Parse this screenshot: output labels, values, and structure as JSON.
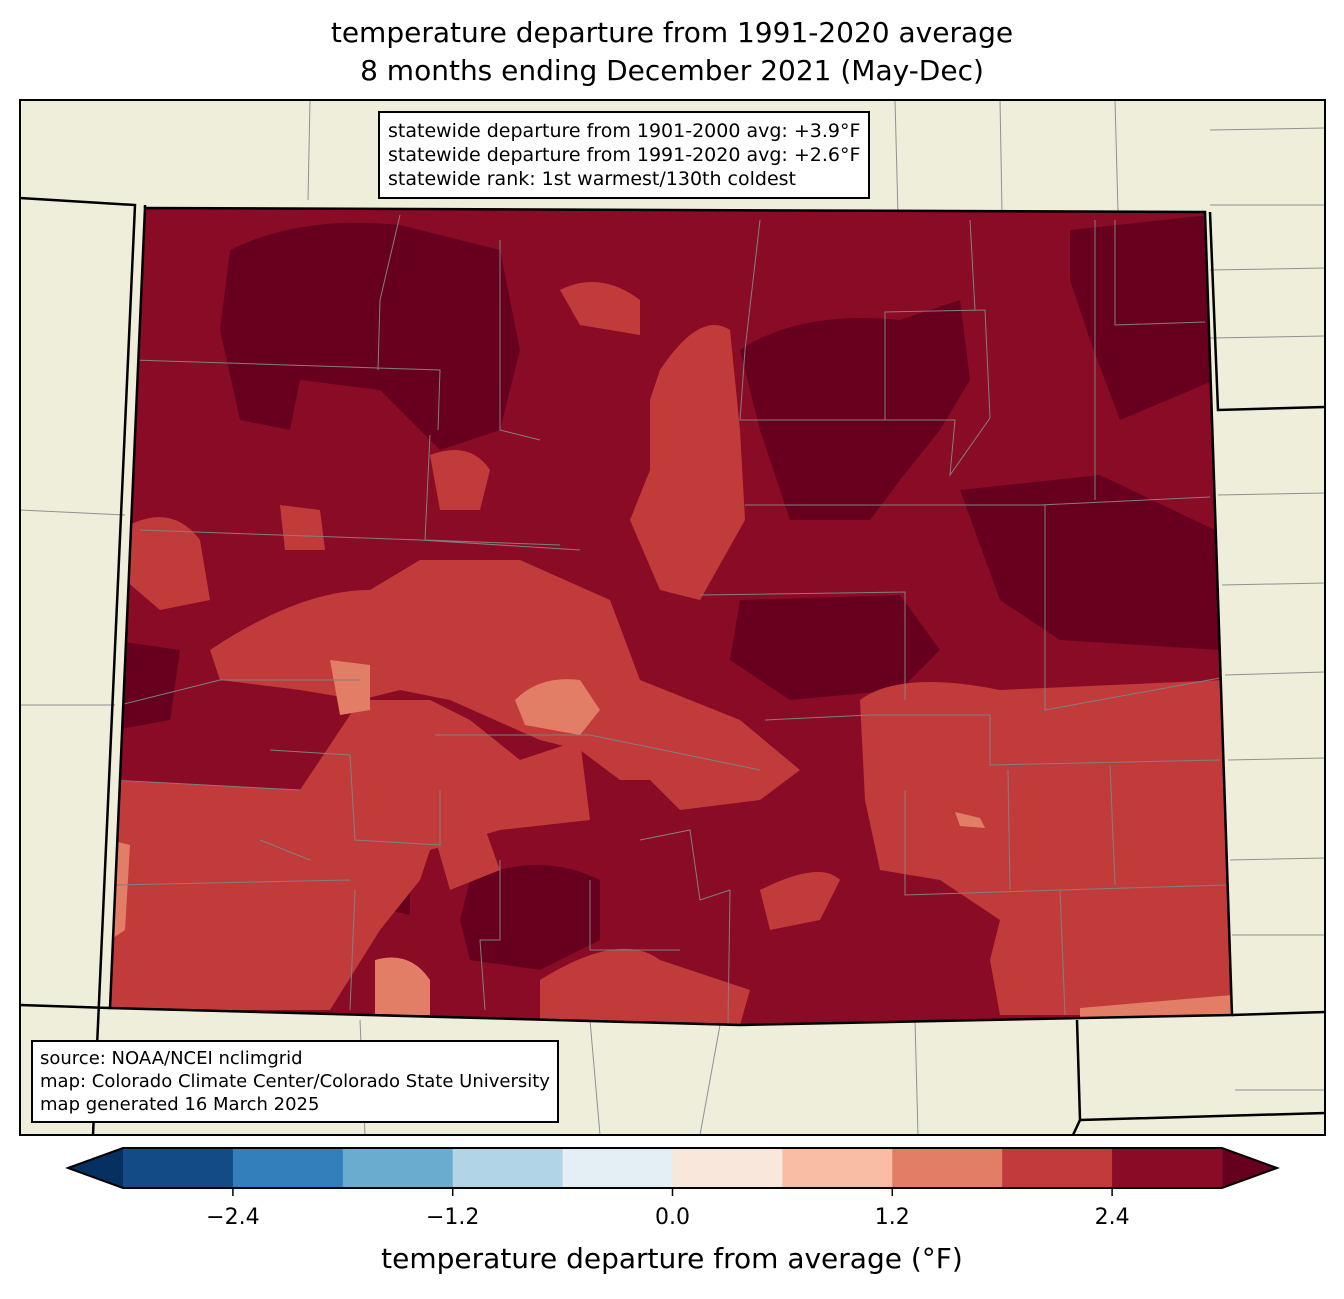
{
  "title": {
    "line1": "temperature departure from 1991-2020 average",
    "line2": "8 months ending December 2021 (May-Dec)"
  },
  "stats_box": {
    "line1": "statewide departure from 1901-2000 avg: +3.9°F",
    "line2": "statewide departure from 1991-2020 avg: +2.6°F",
    "line3": "statewide rank: 1st warmest/130th coldest"
  },
  "source_box": {
    "line1": "source: NOAA/NCEI nclimgrid",
    "line2": "map: Colorado Climate Center/Colorado State University",
    "line3": "map generated 16 March 2025"
  },
  "colorbar": {
    "label": "temperature departure from average (°F)",
    "bounds": [
      -3.0,
      -2.4,
      -1.8,
      -1.2,
      -0.6,
      0.0,
      0.6,
      1.2,
      1.8,
      2.4,
      3.0
    ],
    "colors": [
      "#134b87",
      "#327fbb",
      "#6aacd0",
      "#b1d5e7",
      "#e4eef5",
      "#f9e7dc",
      "#f9bda3",
      "#e27e65",
      "#c23b3b",
      "#8a0b25"
    ],
    "extend_low_color": "#053061",
    "extend_high_color": "#67001f",
    "ticks": [
      {
        "value": -2.4,
        "label": "−2.4"
      },
      {
        "value": -1.2,
        "label": "−1.2"
      },
      {
        "value": 0.0,
        "label": "0.0"
      },
      {
        "value": 1.2,
        "label": "1.2"
      },
      {
        "value": 2.4,
        "label": "2.4"
      }
    ]
  },
  "map_colors": {
    "land": "#efeedb",
    "base": "#8a0b25",
    "hot": "#67001f",
    "warm": "#c23b3b",
    "mild": "#e27e65",
    "county_line": "#808080"
  }
}
